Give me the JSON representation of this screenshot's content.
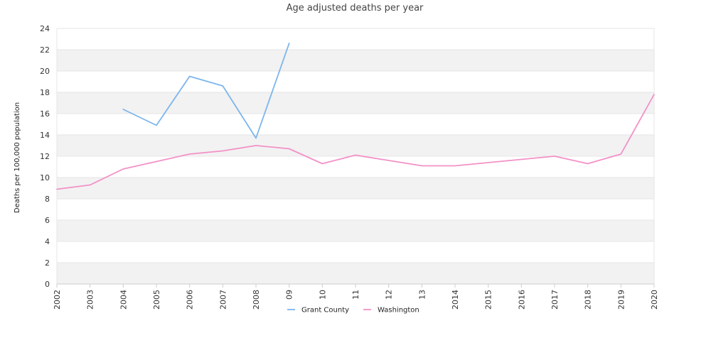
{
  "chart_data": {
    "type": "line",
    "title": "Age adjusted deaths per year",
    "xlabel": "",
    "ylabel": "Deaths per 100,000 population",
    "categories": [
      "2002",
      "2003",
      "2004",
      "2005",
      "2006",
      "2007",
      "2008",
      "09",
      "10",
      "11",
      "12",
      "13",
      "2014",
      "2015",
      "2016",
      "2017",
      "2018",
      "2019",
      "2020"
    ],
    "ylim": [
      0,
      24
    ],
    "yticks": [
      0,
      2,
      4,
      6,
      8,
      10,
      12,
      14,
      16,
      18,
      20,
      22,
      24
    ],
    "grid": true,
    "band_color": "#f2f2f2",
    "legend_position": "bottom",
    "series": [
      {
        "name": "Grant County",
        "color": "#7cb5ec",
        "values": [
          null,
          null,
          16.4,
          14.9,
          19.5,
          18.6,
          13.7,
          22.6,
          null,
          null,
          null,
          null,
          null,
          null,
          null,
          null,
          null,
          null,
          null
        ]
      },
      {
        "name": "Washington",
        "color": "#f391c7",
        "values": [
          8.9,
          9.3,
          10.8,
          11.5,
          12.2,
          12.5,
          13.0,
          12.7,
          11.3,
          12.1,
          11.6,
          11.1,
          11.1,
          11.4,
          11.7,
          12.0,
          11.3,
          12.2,
          17.8
        ]
      }
    ]
  }
}
